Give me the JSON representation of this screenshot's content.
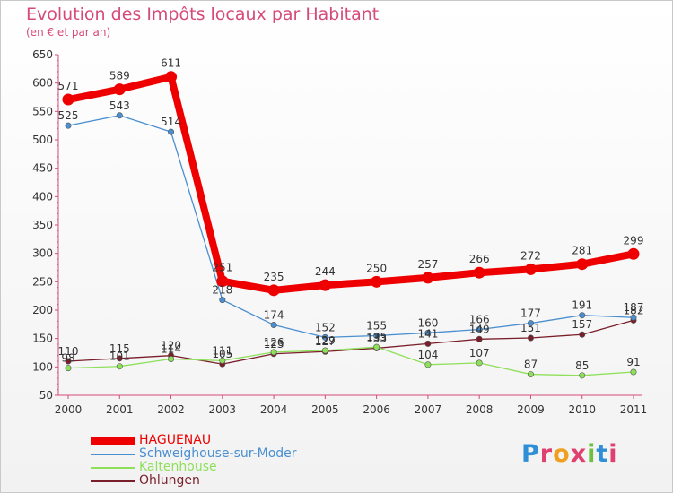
{
  "title": "Evolution des Impôts locaux par Habitant",
  "subtitle": "(en € et par an)",
  "logo": "Proxiti",
  "chart_data": {
    "type": "line",
    "x": [
      "2000",
      "2001",
      "2002",
      "2003",
      "2004",
      "2005",
      "2006",
      "2007",
      "2008",
      "2009",
      "2010",
      "2011"
    ],
    "ylim": [
      50,
      650
    ],
    "yticks": [
      50,
      100,
      150,
      200,
      250,
      300,
      350,
      400,
      450,
      500,
      550,
      600,
      650
    ],
    "grid": false,
    "legend_position": "bottom-left",
    "series": [
      {
        "name": "HAGUENAU",
        "color": "#ee0000",
        "values": [
          571,
          589,
          611,
          251,
          235,
          244,
          250,
          257,
          266,
          272,
          281,
          299
        ]
      },
      {
        "name": "Schweighouse-sur-Moder",
        "color": "#4a8fd0",
        "values": [
          525,
          543,
          514,
          218,
          174,
          152,
          155,
          160,
          166,
          177,
          191,
          187
        ]
      },
      {
        "name": "Kaltenhouse",
        "color": "#8ee05a",
        "values": [
          98,
          101,
          114,
          111,
          126,
          129,
          135,
          104,
          107,
          87,
          85,
          91
        ]
      },
      {
        "name": "Ohlungen",
        "color": "#7a1f2a",
        "values": [
          110,
          115,
          120,
          105,
          123,
          127,
          133,
          141,
          149,
          151,
          157,
          182
        ]
      }
    ]
  }
}
